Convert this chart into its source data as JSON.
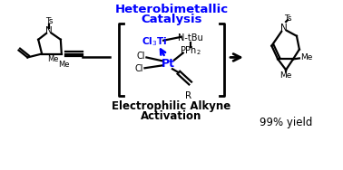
{
  "title_line1": "Heterobimetallic",
  "title_line2": "Catalysis",
  "title_color": "#0000FF",
  "bottom_label_line1": "Electrophilic Alkyne",
  "bottom_label_line2": "Activation",
  "yield_text": "99% yield",
  "bg_color": "#FFFFFF",
  "black": "#000000",
  "blue": "#0000FF",
  "bond_lw": 1.6,
  "font_size_title": 9.5,
  "font_size_label": 8.5,
  "fig_width": 3.78,
  "fig_height": 1.88
}
